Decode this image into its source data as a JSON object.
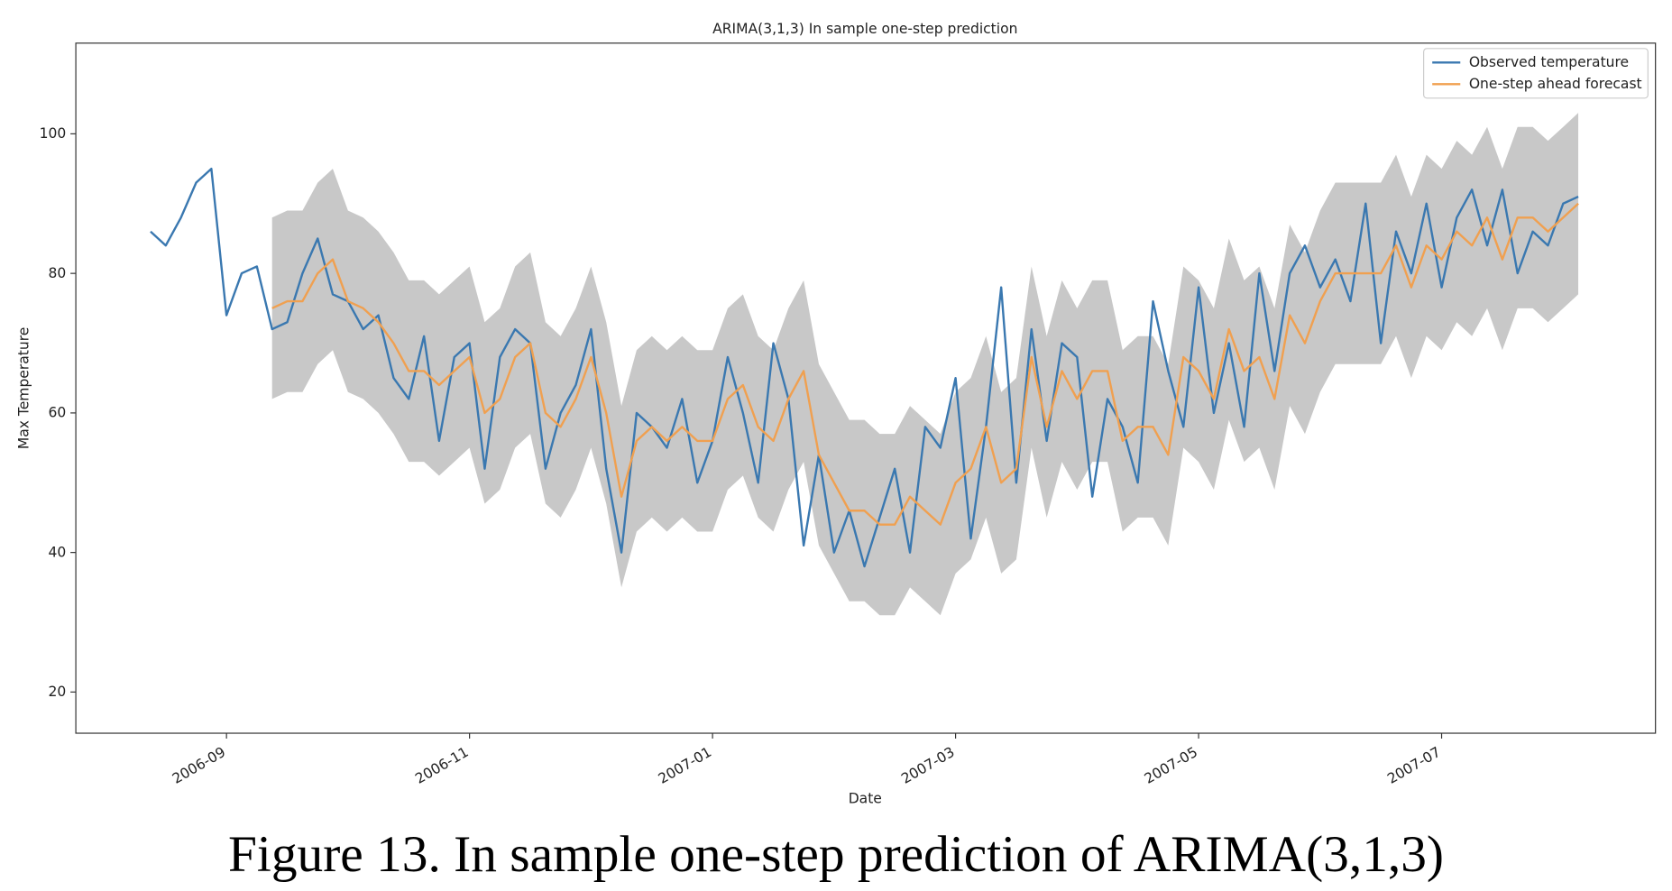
{
  "chart_data": {
    "type": "line",
    "title": "ARIMA(3,1,3) In sample one-step prediction",
    "x_label": "Date",
    "y_label": "Max Temperature",
    "caption": "Figure 13. In sample one-step prediction of ARIMA(3,1,3)",
    "x": [
      8.375,
      8.5,
      8.625,
      8.75,
      8.875,
      9,
      9.125,
      9.25,
      9.375,
      9.5,
      9.625,
      9.75,
      9.875,
      10,
      10.125,
      10.25,
      10.375,
      10.5,
      10.625,
      10.75,
      10.875,
      11,
      11.125,
      11.25,
      11.375,
      11.5,
      11.625,
      11.75,
      11.875,
      12,
      12.125,
      12.25,
      12.375,
      12.5,
      12.625,
      12.75,
      12.875,
      13,
      13.125,
      13.25,
      13.375,
      13.5,
      13.625,
      13.75,
      13.875,
      14,
      14.125,
      14.25,
      14.375,
      14.5,
      14.625,
      14.75,
      14.875,
      15,
      15.125,
      15.25,
      15.375,
      15.5,
      15.625,
      15.75,
      15.875,
      16,
      16.125,
      16.25,
      16.375,
      16.5,
      16.625,
      16.75,
      16.875,
      17,
      17.125,
      17.25,
      17.375,
      17.5,
      17.625,
      17.75,
      17.875,
      18,
      18.125,
      18.25,
      18.375,
      18.5,
      18.625,
      18.75,
      18.875,
      19,
      19.125,
      19.25,
      19.375,
      19.5,
      19.625,
      19.75,
      19.875,
      20,
      20.125
    ],
    "series": [
      {
        "name": "Observed temperature",
        "color": "#3a78b0",
        "values": [
          86,
          84,
          88,
          93,
          95,
          74,
          80,
          81,
          72,
          73,
          80,
          85,
          77,
          76,
          72,
          74,
          65,
          62,
          71,
          56,
          68,
          70,
          52,
          68,
          72,
          70,
          52,
          60,
          64,
          72,
          52,
          40,
          60,
          58,
          55,
          62,
          50,
          56,
          68,
          60,
          50,
          70,
          62,
          41,
          54,
          40,
          46,
          38,
          45,
          52,
          40,
          58,
          55,
          65,
          42,
          58,
          78,
          50,
          72,
          56,
          70,
          68,
          48,
          62,
          58,
          50,
          76,
          66,
          58,
          78,
          60,
          70,
          58,
          80,
          66,
          80,
          84,
          78,
          82,
          76,
          90,
          70,
          86,
          80,
          90,
          78,
          88,
          92,
          84,
          92,
          80,
          86,
          84,
          90,
          91
        ]
      },
      {
        "name": "One-step ahead forecast",
        "color": "#f0a050",
        "values": [
          null,
          null,
          null,
          null,
          null,
          null,
          null,
          null,
          75,
          76,
          76,
          80,
          82,
          76,
          75,
          73,
          70,
          66,
          66,
          64,
          66,
          68,
          60,
          62,
          68,
          70,
          60,
          58,
          62,
          68,
          60,
          48,
          56,
          58,
          56,
          58,
          56,
          56,
          62,
          64,
          58,
          56,
          62,
          66,
          54,
          50,
          46,
          46,
          44,
          44,
          48,
          46,
          44,
          50,
          52,
          58,
          50,
          52,
          68,
          58,
          66,
          62,
          66,
          66,
          56,
          58,
          58,
          54,
          68,
          66,
          62,
          72,
          66,
          68,
          62,
          74,
          70,
          76,
          80,
          80,
          80,
          80,
          84,
          78,
          84,
          82,
          86,
          84,
          88,
          82,
          88,
          88,
          86,
          88,
          90
        ]
      }
    ],
    "band": {
      "color": "#c8c8c8",
      "lower": [
        null,
        null,
        null,
        null,
        null,
        null,
        null,
        null,
        62,
        63,
        63,
        67,
        69,
        63,
        62,
        60,
        57,
        53,
        53,
        51,
        53,
        55,
        47,
        49,
        55,
        57,
        47,
        45,
        49,
        55,
        47,
        35,
        43,
        45,
        43,
        45,
        43,
        43,
        49,
        51,
        45,
        43,
        49,
        53,
        41,
        37,
        33,
        33,
        31,
        31,
        35,
        33,
        31,
        37,
        39,
        45,
        37,
        39,
        55,
        45,
        53,
        49,
        53,
        53,
        43,
        45,
        45,
        41,
        55,
        53,
        49,
        59,
        53,
        55,
        49,
        61,
        57,
        63,
        67,
        67,
        67,
        67,
        71,
        65,
        71,
        69,
        73,
        71,
        75,
        69,
        75,
        75,
        73,
        75,
        77
      ],
      "upper": [
        null,
        null,
        null,
        null,
        null,
        null,
        null,
        null,
        88,
        89,
        89,
        93,
        95,
        89,
        88,
        86,
        83,
        79,
        79,
        77,
        79,
        81,
        73,
        75,
        81,
        83,
        73,
        71,
        75,
        81,
        73,
        61,
        69,
        71,
        69,
        71,
        69,
        69,
        75,
        77,
        71,
        69,
        75,
        79,
        67,
        63,
        59,
        59,
        57,
        57,
        61,
        59,
        57,
        63,
        65,
        71,
        63,
        65,
        81,
        71,
        79,
        75,
        79,
        79,
        69,
        71,
        71,
        67,
        81,
        79,
        75,
        85,
        79,
        81,
        75,
        87,
        83,
        89,
        93,
        93,
        93,
        93,
        97,
        91,
        97,
        95,
        99,
        97,
        101,
        95,
        101,
        101,
        99,
        101,
        103
      ]
    },
    "xlim": [
      7.76,
      20.76
    ],
    "ylim": [
      14.1,
      113
    ],
    "xticks": [
      {
        "value": 9,
        "label": "2006-09"
      },
      {
        "value": 11,
        "label": "2006-11"
      },
      {
        "value": 13,
        "label": "2007-01"
      },
      {
        "value": 15,
        "label": "2007-03"
      },
      {
        "value": 17,
        "label": "2007-05"
      },
      {
        "value": 19,
        "label": "2007-07"
      }
    ],
    "yticks": [
      20,
      40,
      60,
      80,
      100
    ],
    "legend": "upper right"
  }
}
